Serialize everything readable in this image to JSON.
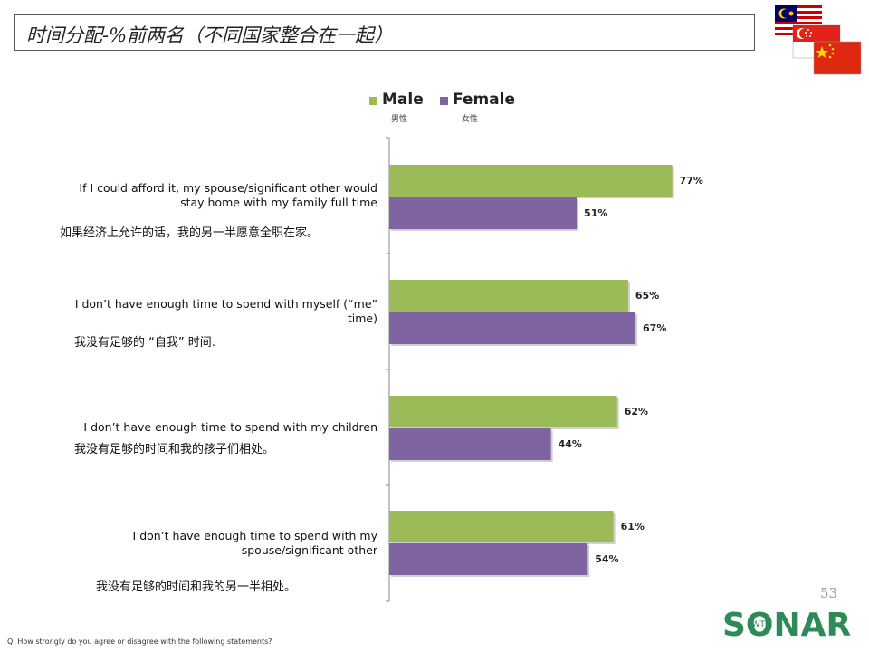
{
  "slide": {
    "title": "时间分配-%前两名（不同国家整合在一起）",
    "page_number": "53",
    "footnote": "Q. How strongly do you agree or disagree with the following statements?",
    "logo_text": "SONAR",
    "logo_sub": "JWT"
  },
  "legend": {
    "male": {
      "label": "Male",
      "sub": "男性",
      "color": "#9bbb59"
    },
    "female": {
      "label": "Female",
      "sub": "女性",
      "color": "#8064a2"
    }
  },
  "chart_data": {
    "type": "bar",
    "orientation": "horizontal",
    "categories": [
      {
        "en": "If I could afford it, my spouse/significant other would stay home with my family full time",
        "cn": "如果经济上允许的话，我的另一半愿意全职在家。"
      },
      {
        "en": "I don’t have enough time to spend with myself (“me” time)",
        "cn": "我没有足够的 “自我” 时间."
      },
      {
        "en": "I don’t have enough time to spend with my children",
        "cn": "我没有足够的时间和我的孩子们相处。"
      },
      {
        "en": "I don’t have enough time to spend with my spouse/significant other",
        "cn": "我没有足够的时间和我的另一半相处。"
      }
    ],
    "series": [
      {
        "name": "Male",
        "values": [
          77,
          65,
          62,
          61
        ],
        "labels": [
          "77%",
          "65%",
          "62%",
          "61%"
        ],
        "color": "#9bbb59"
      },
      {
        "name": "Female",
        "values": [
          51,
          67,
          44,
          54
        ],
        "labels": [
          "51%",
          "67%",
          "44%",
          "54%"
        ],
        "color": "#8064a2"
      }
    ],
    "xlim": [
      0,
      100
    ],
    "grid": false,
    "legend_position": "top"
  }
}
